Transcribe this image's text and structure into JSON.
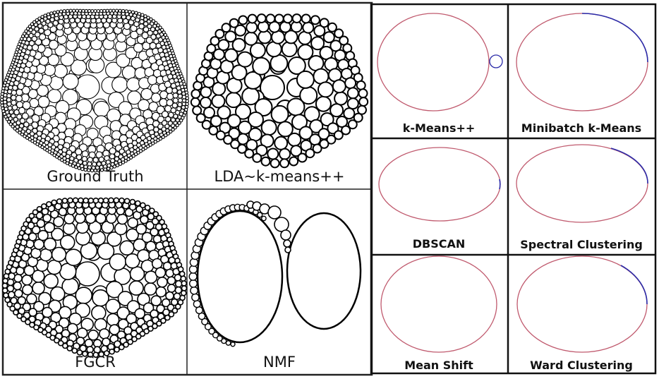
{
  "panels_left": [
    {
      "id": "ground-truth",
      "label": "Ground Truth"
    },
    {
      "id": "lda-kmeans",
      "label": "LDA~k-means++"
    },
    {
      "id": "fgcr",
      "label": "FGCR"
    },
    {
      "id": "nmf",
      "label": "NMF"
    }
  ],
  "panels_right": [
    {
      "id": "kmeans-pp",
      "label": "k-Means++"
    },
    {
      "id": "minibatch-kmeans",
      "label": "Minibatch k-Means"
    },
    {
      "id": "dbscan",
      "label": "DBSCAN"
    },
    {
      "id": "spectral",
      "label": "Spectral Clustering"
    },
    {
      "id": "mean-shift",
      "label": "Mean Shift"
    },
    {
      "id": "ward",
      "label": "Ward Clustering"
    }
  ],
  "colors": {
    "border": "#222222",
    "circle_stroke": "#000000",
    "ellipse_red": "#c05a6e",
    "ellipse_blue": "#2b2ba8"
  }
}
